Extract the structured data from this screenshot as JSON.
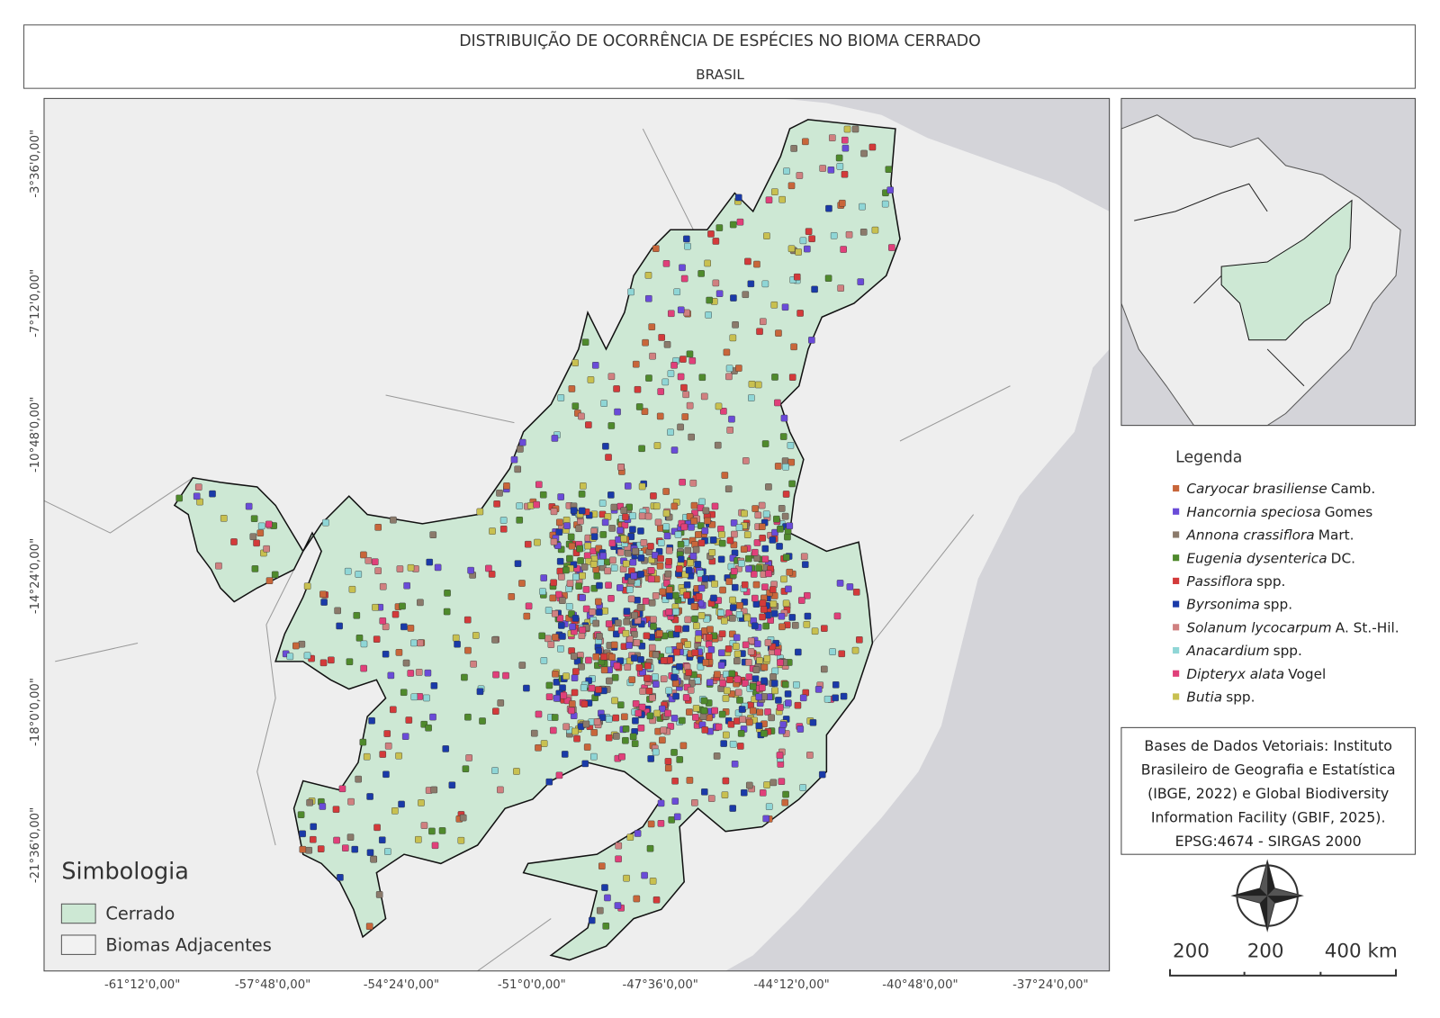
{
  "header": {
    "title": "DISTRIBUIÇÃO DE OCORRÊNCIA DE ESPÉCIES NO BIOMA CERRADO",
    "subtitle": "BRASIL"
  },
  "map": {
    "lon_labels": [
      "-61°12'0,00\"",
      "-57°48'0,00\"",
      "-54°24'0,00\"",
      "-51°0'0,00\"",
      "-47°36'0,00\"",
      "-44°12'0,00\"",
      "-40°48'0,00\"",
      "-37°24'0,00\""
    ],
    "lat_labels": [
      "-3°36'0,00\"",
      "-7°12'0,00\"",
      "-10°48'0,00\"",
      "-14°24'0,00\"",
      "-18°0'0,00\"",
      "-21°36'0,00\""
    ],
    "symbology": {
      "title": "Simbologia",
      "items": [
        {
          "label": "Cerrado",
          "color": "#cde8d4"
        },
        {
          "label": "Biomas Adjacentes",
          "color": "#f2f2f2"
        }
      ]
    }
  },
  "legend": {
    "title": "Legenda",
    "items": [
      {
        "species": "Caryocar brasiliense",
        "author": "Camb.",
        "color": "#c8663a"
      },
      {
        "species": "Hancornia speciosa",
        "author": "Gomes",
        "color": "#6a4bd8"
      },
      {
        "species": "Annona crassiflora",
        "author": "Mart.",
        "color": "#8b7a6b"
      },
      {
        "species": "Eugenia dysenterica",
        "author": "DC.",
        "color": "#4f8a2c"
      },
      {
        "species": "Passiflora",
        "author": "spp.",
        "color": "#d33a3a"
      },
      {
        "species": "Byrsonima",
        "author": "spp.",
        "color": "#1a3aa8"
      },
      {
        "species": "Solanum lycocarpum",
        "author": "A. St.-Hil.",
        "color": "#d08080"
      },
      {
        "species": "Anacardium",
        "author": "spp.",
        "color": "#8fd6d6"
      },
      {
        "species": "Dipteryx alata",
        "author": "Vogel",
        "color": "#e0407a"
      },
      {
        "species": "Butia",
        "author": "spp.",
        "color": "#c8c050"
      }
    ]
  },
  "credits": [
    "Bases de Dados Vetoriais: Instituto",
    "Brasileiro de Geografia e Estatística",
    "(IBGE, 2022) e Global Biodiversity",
    "Information Facility (GBIF, 2025).",
    "EPSG:4674 - SIRGAS 2000"
  ],
  "scale_bar": [
    "200",
    "200",
    "400 km"
  ]
}
